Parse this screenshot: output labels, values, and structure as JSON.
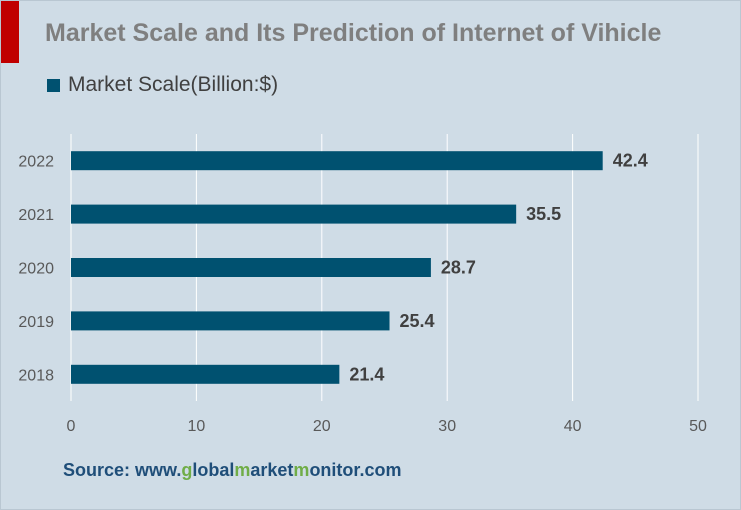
{
  "chart_data": {
    "type": "bar",
    "orientation": "horizontal",
    "title": "Market Scale and Its Prediction of Internet of Vihicle",
    "categories": [
      "2018",
      "2019",
      "2020",
      "2021",
      "2022"
    ],
    "series": [
      {
        "name": "Market Scale(Billion:$)",
        "values": [
          21.4,
          25.4,
          28.7,
          35.5,
          42.4
        ],
        "color": "#005170"
      }
    ],
    "data_labels": [
      "21.4",
      "25.4",
      "28.7",
      "35.5",
      "42.4"
    ],
    "xlim": [
      0,
      50
    ],
    "x_ticks": [
      0,
      10,
      20,
      30,
      40,
      50
    ],
    "grid": "vertical",
    "legend_position": "top-left"
  },
  "colors": {
    "background": "#cfdce6",
    "accent": "#c00000",
    "title": "#7f7f7f",
    "bar": "#005170",
    "grid": "#ffffff",
    "source": "#1f4e79",
    "source_highlight": "#70ad47"
  },
  "source": {
    "prefix": "Source: www.",
    "segments": [
      {
        "text": "g",
        "highlight": true
      },
      {
        "text": "lobal",
        "highlight": false
      },
      {
        "text": "m",
        "highlight": true
      },
      {
        "text": "arket",
        "highlight": false
      },
      {
        "text": "m",
        "highlight": true
      },
      {
        "text": "onitor",
        "highlight": false
      }
    ],
    "suffix": ".com"
  }
}
